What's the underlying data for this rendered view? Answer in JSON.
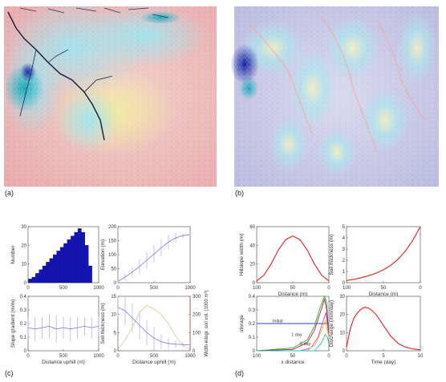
{
  "panel_labels": {
    "a": "(a)",
    "b": "(b)",
    "c": "(c)",
    "d": "(d)"
  },
  "colors": {
    "bar": "#1414b4",
    "errbar": "#b4b4f0",
    "curve": "#e02020",
    "right_axis": "#e03030"
  },
  "chart_data": [
    {
      "type": "bar",
      "title": "",
      "xlabel": "",
      "ylabel": "Number",
      "xlim": [
        0,
        1000
      ],
      "ylim": [
        0,
        30
      ],
      "xticks": [
        "0",
        "500",
        "1000"
      ],
      "yticks": [
        "0",
        "10",
        "20",
        "30"
      ],
      "bins_x": [
        30,
        80,
        130,
        180,
        230,
        280,
        330,
        380,
        430,
        480,
        530,
        580,
        630,
        680,
        730,
        780,
        830,
        880
      ],
      "values": [
        2,
        3,
        5,
        7,
        9,
        11,
        13,
        15,
        17,
        19,
        21,
        23,
        25,
        27,
        29,
        27,
        20,
        9
      ]
    },
    {
      "type": "line",
      "title": "",
      "xlabel": "",
      "ylabel": "Elevation (m)",
      "xlim": [
        0,
        1000
      ],
      "ylim": [
        0,
        200
      ],
      "xticks": [
        "0",
        "500",
        "1000"
      ],
      "yticks": [
        "0",
        "50",
        "100",
        "150",
        "200"
      ],
      "x": [
        0,
        100,
        200,
        300,
        400,
        500,
        600,
        700,
        800,
        900,
        1000
      ],
      "y": [
        5,
        20,
        38,
        58,
        80,
        102,
        125,
        145,
        160,
        168,
        172
      ],
      "err": [
        5,
        12,
        18,
        25,
        30,
        32,
        30,
        25,
        18,
        10,
        5
      ]
    },
    {
      "type": "line",
      "title": "",
      "xlabel": "Distance uphill (m)",
      "ylabel": "Slope gradient (m/m)",
      "xlim": [
        0,
        1000
      ],
      "ylim": [
        0,
        0.4
      ],
      "xticks": [
        "0",
        "500",
        "1000"
      ],
      "yticks": [
        "0",
        "0.1",
        "0.2",
        "0.3",
        "0.4"
      ],
      "x": [
        0,
        100,
        200,
        300,
        400,
        500,
        600,
        700,
        800,
        900,
        1000
      ],
      "y": [
        0.17,
        0.16,
        0.17,
        0.18,
        0.16,
        0.17,
        0.16,
        0.17,
        0.18,
        0.17,
        0.18
      ],
      "err": [
        0.08,
        0.09,
        0.08,
        0.09,
        0.1,
        0.08,
        0.09,
        0.08,
        0.07,
        0.08,
        0.07
      ]
    },
    {
      "type": "line",
      "title": "",
      "xlabel": "Distance uphill (m)",
      "ylabel": "Soil thickness (m)",
      "y2label": "Width-integr. soil vol. (1000 m³)",
      "xlim": [
        0,
        1000
      ],
      "ylim": [
        0,
        15
      ],
      "y2lim": [
        0,
        300
      ],
      "xticks": [
        "0",
        "500",
        "1000"
      ],
      "yticks": [
        "0",
        "5",
        "10",
        "15"
      ],
      "y2ticks": [
        "0",
        "100",
        "200",
        "300"
      ],
      "x": [
        0,
        100,
        200,
        300,
        400,
        500,
        600,
        700,
        800,
        900,
        1000
      ],
      "y": [
        12,
        11,
        9,
        7,
        5,
        3.5,
        2.5,
        2,
        1.8,
        1.7,
        1.6
      ],
      "err": [
        3,
        4,
        4,
        4,
        3.5,
        3,
        2,
        1.5,
        1,
        0.8,
        0.6
      ],
      "y2": [
        10,
        60,
        130,
        210,
        250,
        230,
        200,
        150,
        80,
        30,
        5
      ]
    },
    {
      "type": "line",
      "title": "",
      "xlabel": "Distance (m)",
      "ylabel": "Hillslope width (m)",
      "xlim": [
        100,
        0
      ],
      "ylim": [
        0,
        60
      ],
      "xticks": [
        "100",
        "50",
        "0"
      ],
      "yticks": [
        "0",
        "20",
        "40",
        "60"
      ],
      "x": [
        100,
        90,
        80,
        70,
        60,
        50,
        40,
        30,
        20,
        10,
        0
      ],
      "y": [
        2,
        8,
        20,
        35,
        46,
        50,
        46,
        35,
        20,
        8,
        2
      ]
    },
    {
      "type": "line",
      "title": "",
      "xlabel": "Distance (m)",
      "ylabel": "Soil thickness (m)",
      "xlim": [
        100,
        0
      ],
      "ylim": [
        0,
        5
      ],
      "xticks": [
        "100",
        "50",
        "0"
      ],
      "yticks": [
        "0",
        "1",
        "2",
        "3",
        "4",
        "5"
      ],
      "x": [
        100,
        90,
        80,
        70,
        60,
        50,
        40,
        30,
        20,
        10,
        0
      ],
      "y": [
        0.2,
        0.3,
        0.45,
        0.62,
        0.85,
        1.15,
        1.55,
        2.1,
        2.85,
        3.8,
        5.0
      ]
    },
    {
      "type": "line",
      "title": "",
      "xlabel": "x distance",
      "ylabel": "storage",
      "xlim": [
        100,
        0
      ],
      "ylim": [
        0,
        0.4
      ],
      "xticks": [
        "100",
        "50",
        "0"
      ],
      "yticks": [
        "0",
        "0.1",
        "0.2",
        "0.3",
        "0.4"
      ],
      "annotations": [
        "Initial",
        "1 day",
        "5 day"
      ],
      "series": [
        {
          "color": "#2040c0",
          "x": [
            100,
            0
          ],
          "y": [
            0.2,
            0.2
          ]
        },
        {
          "color": "#20b040",
          "x": [
            100,
            50,
            30,
            20,
            12,
            6,
            3,
            0
          ],
          "y": [
            0.0,
            0.02,
            0.08,
            0.18,
            0.32,
            0.4,
            0.35,
            0.1
          ]
        },
        {
          "color": "#c02020",
          "x": [
            100,
            50,
            30,
            20,
            12,
            6,
            3,
            0
          ],
          "y": [
            0.0,
            0.01,
            0.06,
            0.15,
            0.28,
            0.38,
            0.3,
            0.1
          ]
        },
        {
          "color": "#d040d0",
          "x": [
            100,
            40,
            25,
            15,
            8,
            4,
            0
          ],
          "y": [
            0.0,
            0.0,
            0.02,
            0.1,
            0.22,
            0.28,
            0.1
          ]
        },
        {
          "color": "#e0c020",
          "x": [
            100,
            30,
            18,
            10,
            5,
            0
          ],
          "y": [
            0.0,
            0.0,
            0.05,
            0.15,
            0.22,
            0.1
          ]
        },
        {
          "color": "#20c0c0",
          "x": [
            100,
            20,
            10,
            5,
            2,
            0
          ],
          "y": [
            0.0,
            0.0,
            0.06,
            0.12,
            0.1,
            0.05
          ]
        }
      ]
    },
    {
      "type": "line",
      "title": "",
      "xlabel": "Time (day)",
      "ylabel": "Discharge (mm/day)",
      "xlim": [
        0,
        10
      ],
      "ylim": [
        0,
        30
      ],
      "xticks": [
        "0",
        "5",
        "10"
      ],
      "yticks": [
        "0",
        "10",
        "20",
        "30"
      ],
      "x": [
        0,
        0.5,
        1,
        1.5,
        2,
        2.5,
        3,
        3.5,
        4,
        4.5,
        5,
        6,
        7,
        8,
        9,
        10
      ],
      "y": [
        2,
        12,
        18,
        21,
        23,
        24,
        23.5,
        22,
        20,
        17,
        14,
        8,
        4,
        2,
        1,
        0.5
      ]
    }
  ]
}
